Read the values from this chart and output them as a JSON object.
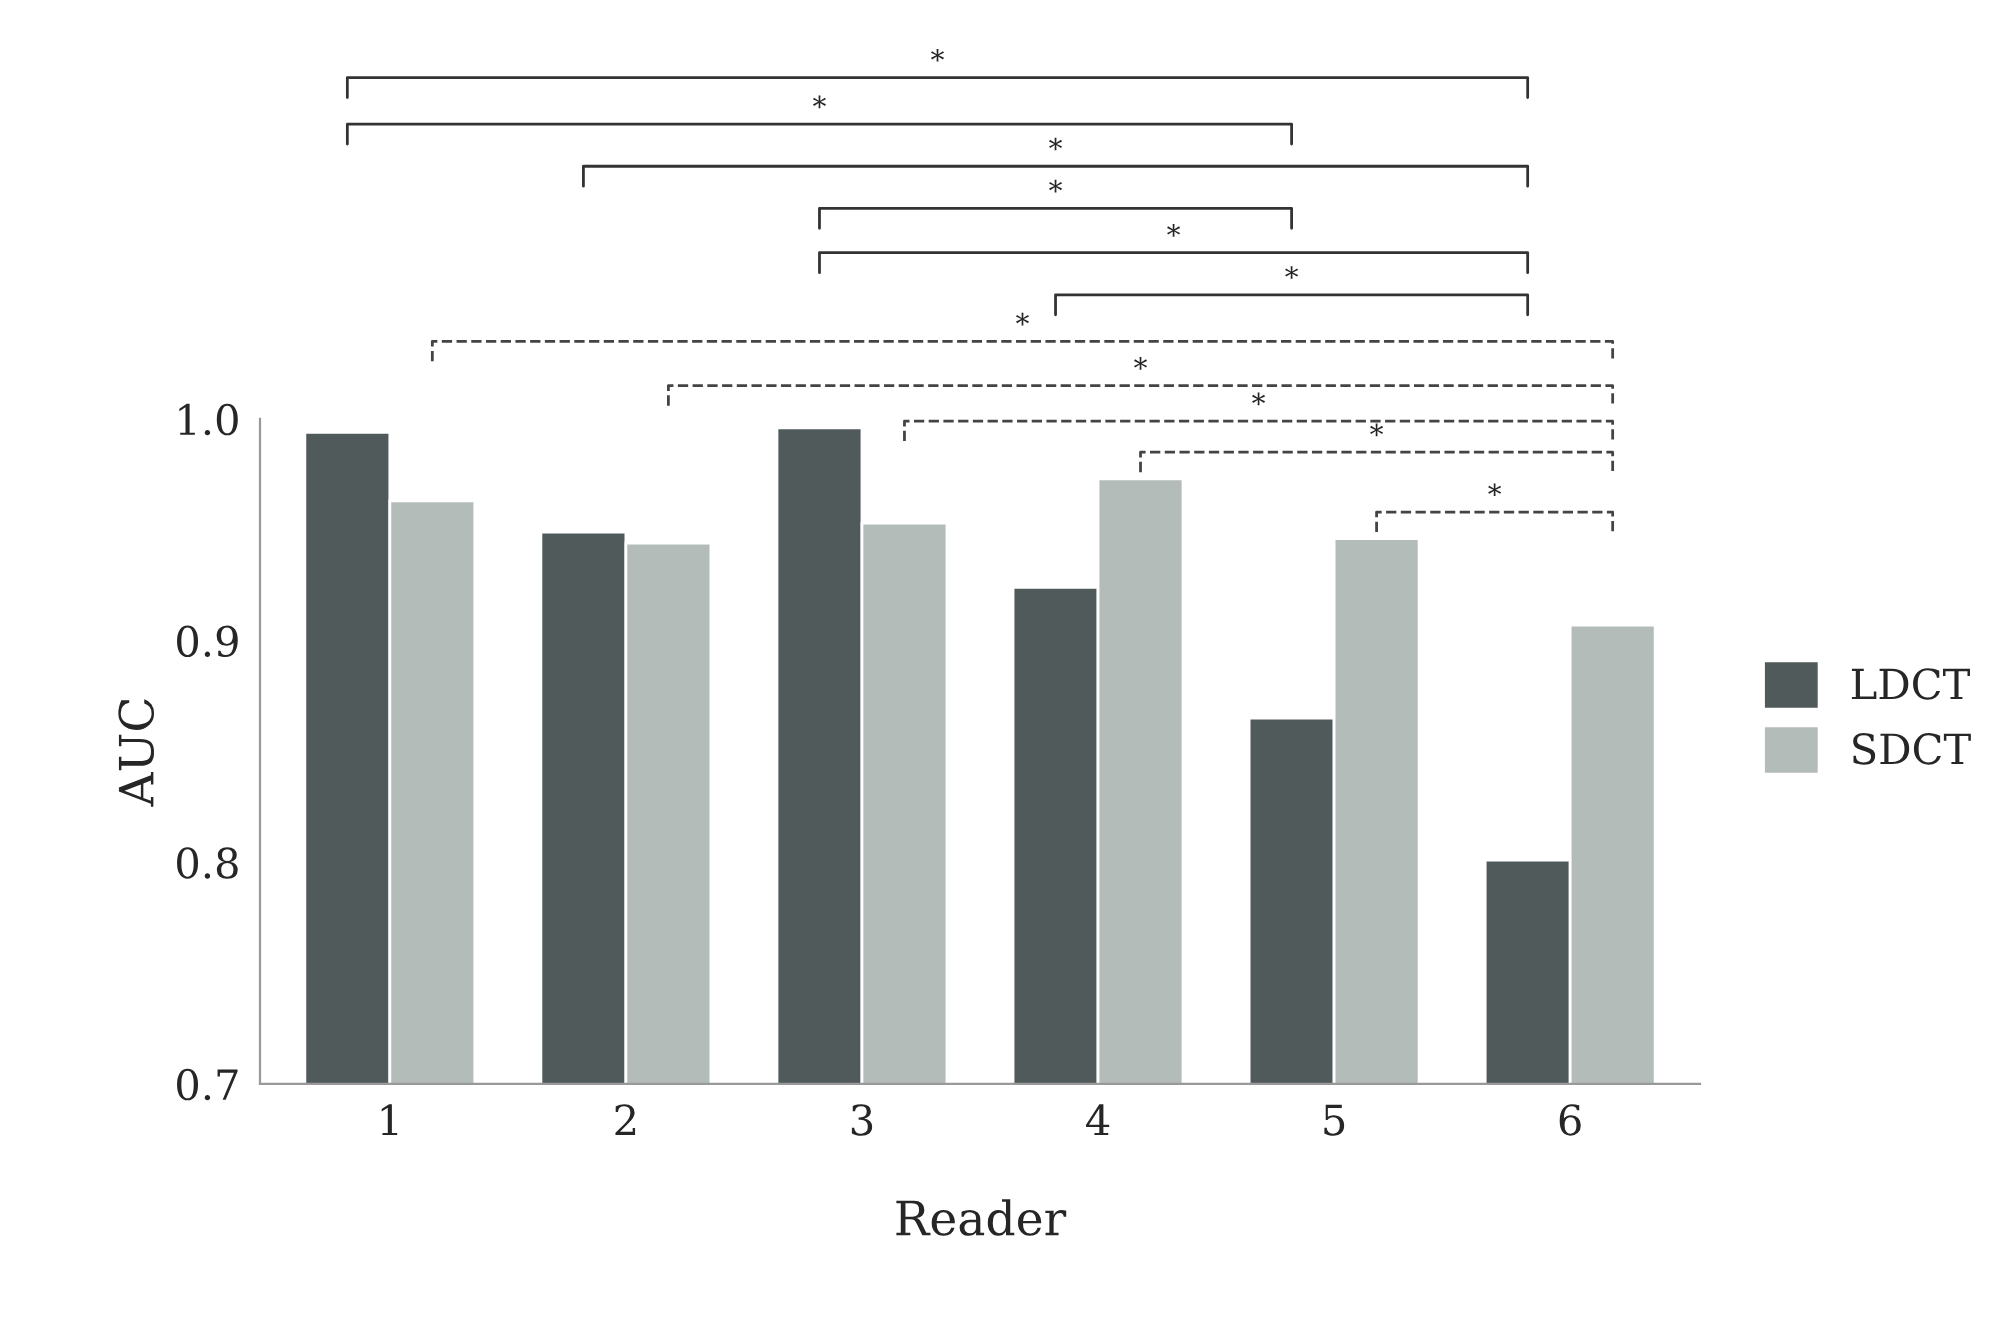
{
  "chart_data": {
    "type": "bar",
    "xlabel": "Reader",
    "ylabel": "AUC",
    "categories": [
      "1",
      "2",
      "3",
      "4",
      "5",
      "6"
    ],
    "series": [
      {
        "name": "LDCT",
        "color": "#505a5a",
        "values": [
          0.994,
          0.949,
          0.996,
          0.924,
          0.865,
          0.801
        ]
      },
      {
        "name": "SDCT",
        "color": "#b4bcba",
        "values": [
          0.963,
          0.944,
          0.953,
          0.973,
          0.946,
          0.907
        ]
      }
    ],
    "ylim": [
      0.7,
      1.0
    ],
    "yticks": [
      0.7,
      0.8,
      0.9,
      {
        "value": 1.0,
        "label": "1.0"
      }
    ],
    "grid": false,
    "legend": "right",
    "annotations": [
      "*",
      "*",
      "*",
      "*",
      "*",
      "*",
      "*",
      "*",
      "*",
      "*",
      "*"
    ]
  }
}
